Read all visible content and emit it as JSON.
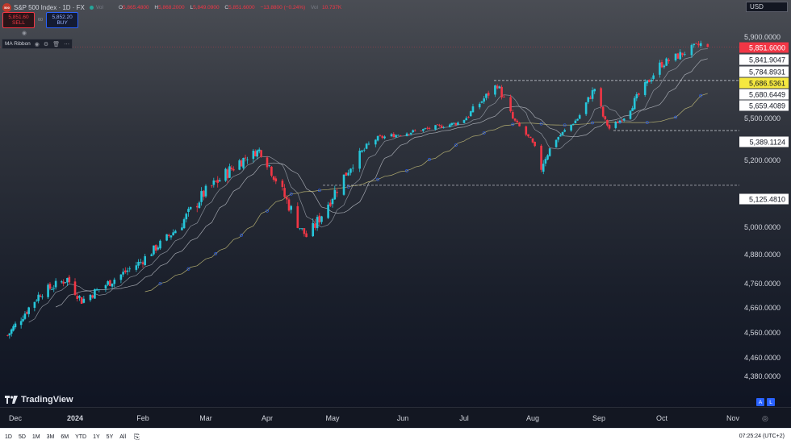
{
  "header": {
    "symbol_badge": "500",
    "title": "S&P 500 Index · 1D · FX",
    "ohlc": [
      {
        "k": "O",
        "v": "5,865.4800"
      },
      {
        "k": "H",
        "v": "5,868.2000"
      },
      {
        "k": "L",
        "v": "5,849.0900"
      },
      {
        "k": "C",
        "v": "5,851.6000"
      }
    ],
    "change": "−13.8800 (−0.24%)",
    "volume_label": "Vol",
    "volume": "10.737K",
    "sell_price": "5,851.60",
    "sell_label": "SELL",
    "spread": "60",
    "buy_price": "5,852.20",
    "buy_label": "BUY"
  },
  "indicator": {
    "name": "MA Ribbon"
  },
  "currency": "USD",
  "brand": "TradingView",
  "price_axis": {
    "ticks": [
      "5,900.0000",
      "5,500.0000",
      "5,300.0000",
      "5,200.0000",
      "5,000.0000",
      "4,880.0000",
      "4,760.0000",
      "4,660.0000",
      "4,560.0000",
      "4,460.0000",
      "4,380.0000"
    ],
    "labels": [
      {
        "text": "5,851.6000",
        "kind": "price",
        "value": 5851.6
      },
      {
        "text": "5,841.9047",
        "kind": "white",
        "value": 5841.9
      },
      {
        "text": "5,784.8931",
        "kind": "white",
        "value": 5784.9
      },
      {
        "text": "5,686.5361",
        "kind": "yellow",
        "value": 5686.5
      },
      {
        "text": "5,680.6449",
        "kind": "white",
        "value": 5680.6
      },
      {
        "text": "5,659.4089",
        "kind": "white",
        "value": 5659.4
      },
      {
        "text": "5,389.1124",
        "kind": "white",
        "value": 5389.1
      },
      {
        "text": "5,125.4810",
        "kind": "white",
        "value": 5125.5
      }
    ]
  },
  "time_axis": {
    "labels": [
      {
        "text": "Dec",
        "bold": false
      },
      {
        "text": "2024",
        "bold": true
      },
      {
        "text": "Feb",
        "bold": false
      },
      {
        "text": "Mar",
        "bold": false
      },
      {
        "text": "Apr",
        "bold": false
      },
      {
        "text": "May",
        "bold": false
      },
      {
        "text": "Jun",
        "bold": false
      },
      {
        "text": "Jul",
        "bold": false
      },
      {
        "text": "Aug",
        "bold": false
      },
      {
        "text": "Sep",
        "bold": false
      },
      {
        "text": "Oct",
        "bold": false
      },
      {
        "text": "Nov",
        "bold": false
      }
    ]
  },
  "toolbar": {
    "ranges": [
      "1D",
      "5D",
      "1M",
      "3M",
      "6M",
      "YTD",
      "1Y",
      "5Y",
      "All"
    ],
    "time": "07:25:24 (UTC+2)",
    "a_label": "A",
    "l_label": "L"
  },
  "colors": {
    "up": "#26c6da",
    "down": "#f23645",
    "ma_fast": "#9aa0aa",
    "ma_mid": "#b8bcc4",
    "ma_slow": "#c9c27a",
    "ma_dots": "#2962ff"
  },
  "chart_data": {
    "type": "candlestick",
    "instrument": "S&P 500 Index",
    "interval": "1D",
    "x_start": "2023-11-27",
    "monthly_path": [
      {
        "date": "2023-11-27",
        "close": 4550
      },
      {
        "date": "2023-12-14",
        "close": 4720
      },
      {
        "date": "2023-12-28",
        "close": 4780
      },
      {
        "date": "2024-01-04",
        "close": 4690
      },
      {
        "date": "2024-01-31",
        "close": 4850
      },
      {
        "date": "2024-02-29",
        "close": 5100
      },
      {
        "date": "2024-03-28",
        "close": 5250
      },
      {
        "date": "2024-04-19",
        "close": 4960
      },
      {
        "date": "2024-05-21",
        "close": 5320
      },
      {
        "date": "2024-06-28",
        "close": 5460
      },
      {
        "date": "2024-07-16",
        "close": 5667
      },
      {
        "date": "2024-08-05",
        "close": 5180
      },
      {
        "date": "2024-08-30",
        "close": 5648
      },
      {
        "date": "2024-09-06",
        "close": 5408
      },
      {
        "date": "2024-09-30",
        "close": 5762
      },
      {
        "date": "2024-10-18",
        "close": 5865
      },
      {
        "date": "2024-10-21",
        "close": 5851.6
      }
    ],
    "horizontal_lines": [
      5686.5361,
      5389.1124,
      5125.481
    ],
    "last_price": 5851.6
  }
}
